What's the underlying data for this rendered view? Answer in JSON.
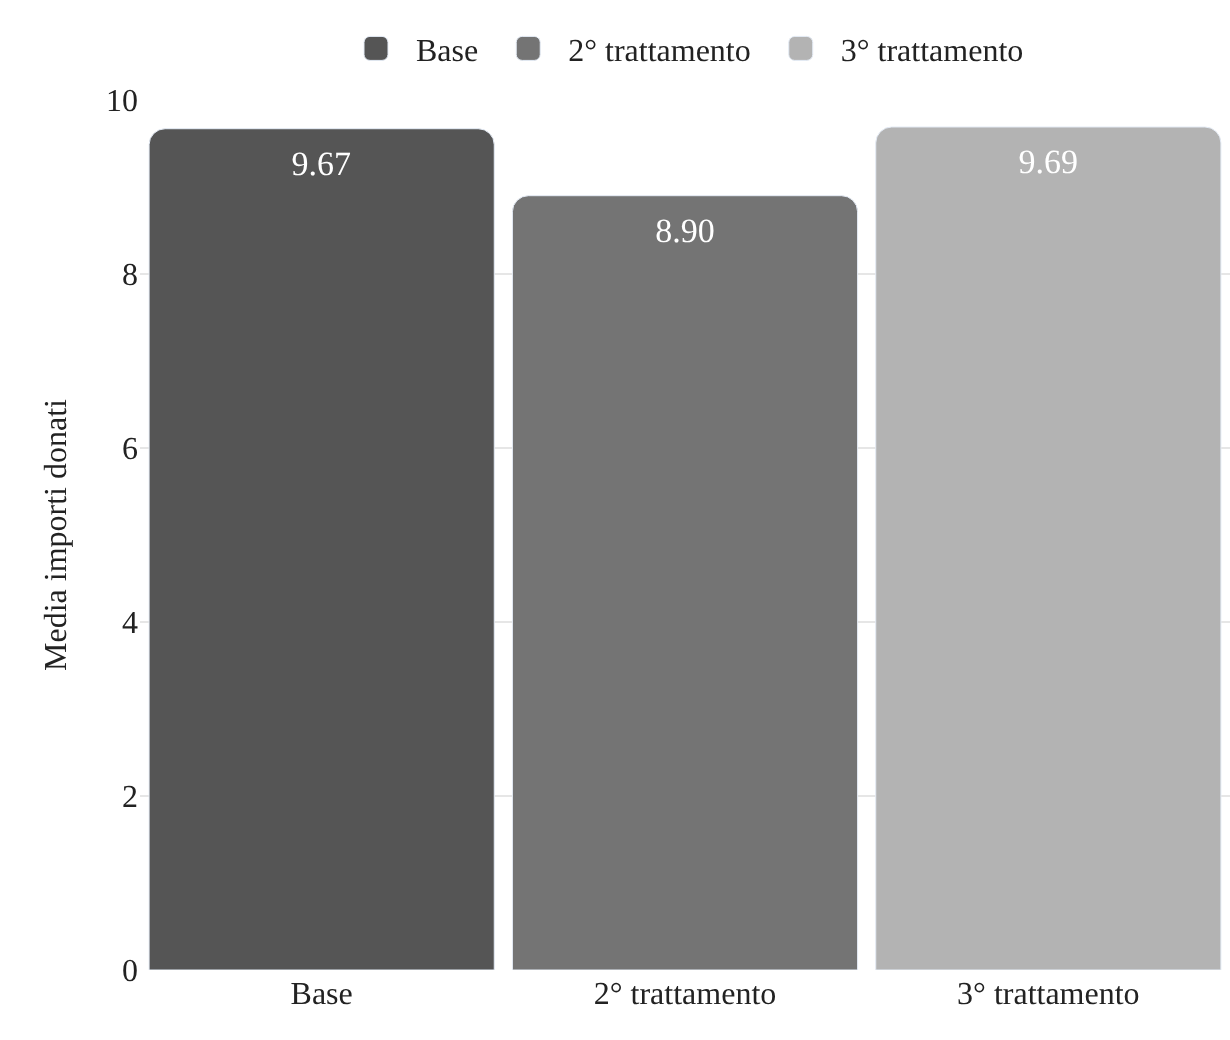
{
  "chart_data": {
    "type": "bar",
    "ylabel": "Media importi donati",
    "categories": [
      "Base",
      "2° trattamento",
      "3° trattamento"
    ],
    "series": [
      {
        "name": "Base",
        "color": "#555555",
        "values": [
          9.67,
          null,
          null
        ],
        "value_labels": [
          "9.67",
          null,
          null
        ]
      },
      {
        "name": "2° trattamento",
        "color": "#747474",
        "values": [
          null,
          8.9,
          null
        ],
        "value_labels": [
          null,
          "8.90",
          null
        ]
      },
      {
        "name": "3° trattamento",
        "color": "#b3b3b3",
        "values": [
          null,
          null,
          9.69
        ],
        "value_labels": [
          null,
          null,
          "9.69"
        ]
      }
    ],
    "ylim": [
      0,
      10
    ],
    "yticks": [
      0,
      2,
      4,
      6,
      8,
      10
    ],
    "grid": "y",
    "legend": "top"
  }
}
